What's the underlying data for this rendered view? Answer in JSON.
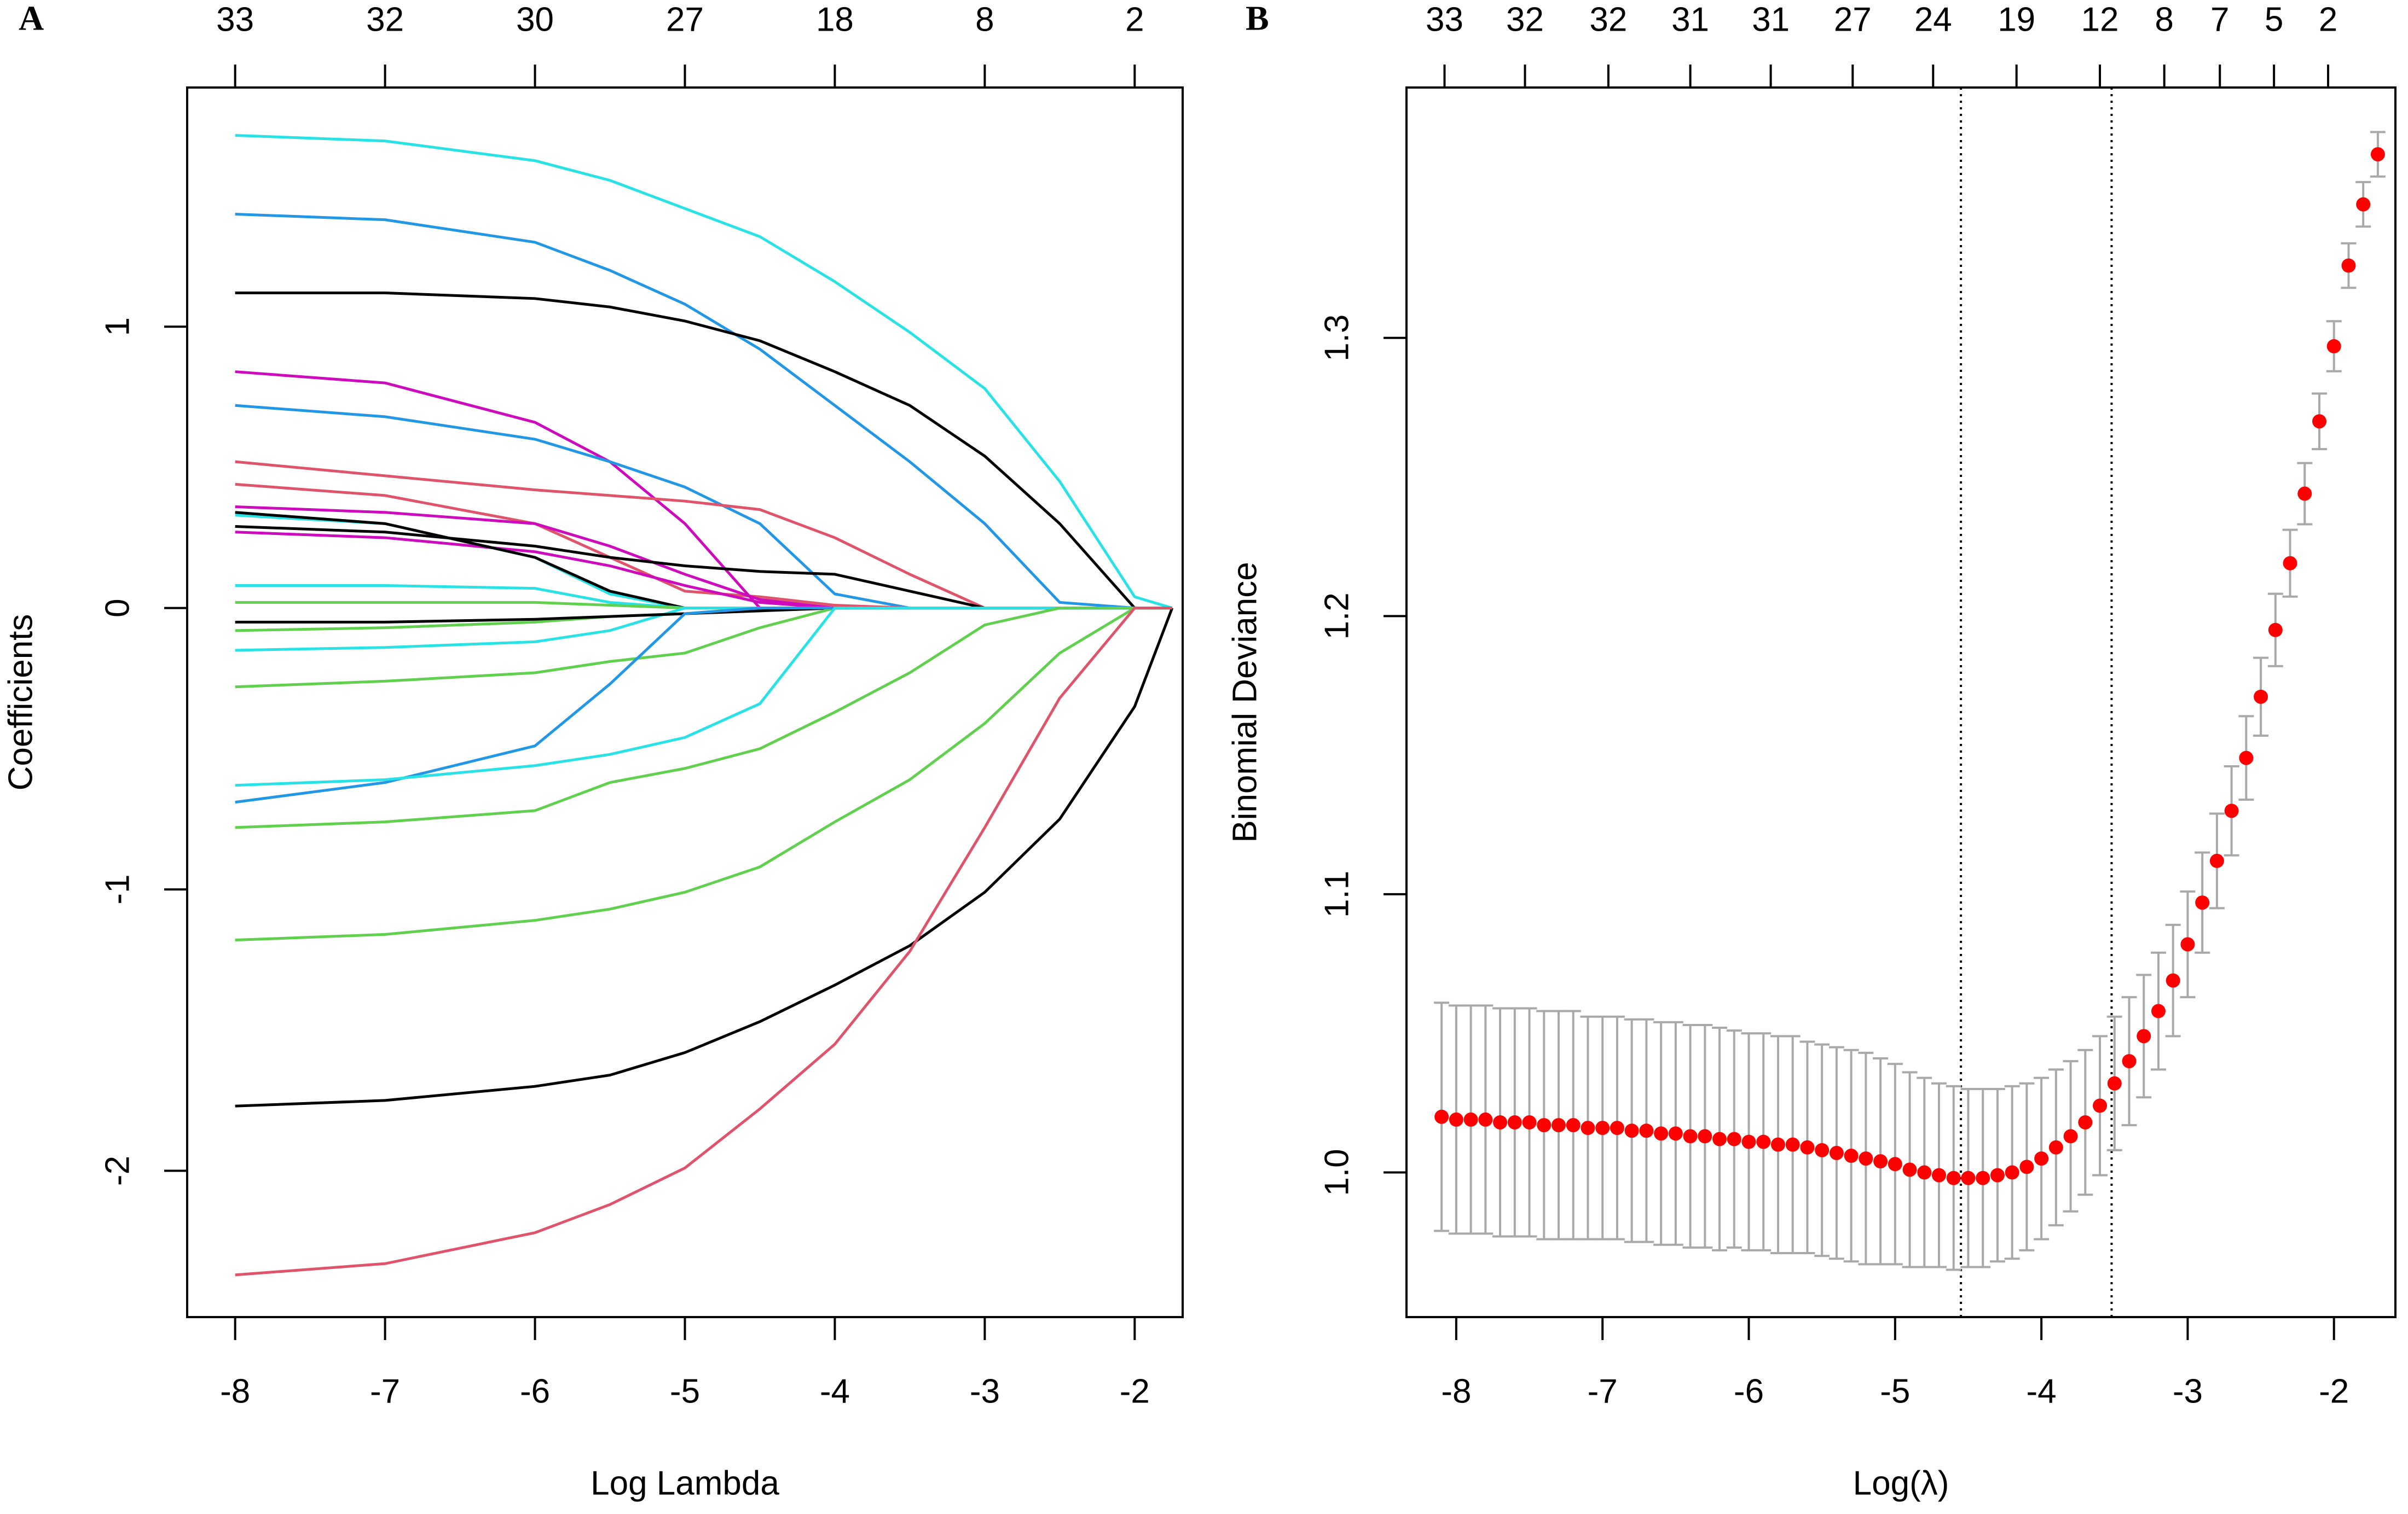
{
  "chart_data": [
    {
      "type": "line",
      "panel": "A",
      "xlabel": "Log Lambda",
      "ylabel": "Coefficients",
      "xlim": [
        -8.32,
        -1.68
      ],
      "ylim": [
        -2.52,
        1.85
      ],
      "xticks": [
        -8,
        -7,
        -6,
        -5,
        -4,
        -3,
        -2
      ],
      "yticks": [
        -2,
        -1,
        0,
        1
      ],
      "x2ticks": [
        {
          "value": -8,
          "label": "33"
        },
        {
          "value": -7,
          "label": "32"
        },
        {
          "value": -6,
          "label": "30"
        },
        {
          "value": -5,
          "label": "27"
        },
        {
          "value": -4,
          "label": "18"
        },
        {
          "value": -3,
          "label": "8"
        },
        {
          "value": -2,
          "label": "2"
        }
      ],
      "x": [
        -8,
        -7,
        -6,
        -5.5,
        -5,
        -4.5,
        -4,
        -3.5,
        -3,
        -2.5,
        -2,
        -1.75
      ],
      "series": [
        {
          "color": "#28E2E5",
          "values": [
            1.68,
            1.66,
            1.59,
            1.52,
            1.42,
            1.32,
            1.16,
            0.98,
            0.78,
            0.45,
            0.04,
            0
          ]
        },
        {
          "color": "#2297E6",
          "values": [
            1.4,
            1.38,
            1.3,
            1.2,
            1.08,
            0.92,
            0.72,
            0.52,
            0.3,
            0.02,
            0,
            0
          ]
        },
        {
          "color": "#000000",
          "values": [
            1.12,
            1.12,
            1.1,
            1.07,
            1.02,
            0.95,
            0.84,
            0.72,
            0.54,
            0.3,
            0,
            0
          ]
        },
        {
          "color": "#CD0BBC",
          "values": [
            0.84,
            0.8,
            0.66,
            0.52,
            0.3,
            0,
            0,
            0,
            0,
            0,
            0,
            0
          ]
        },
        {
          "color": "#2297E6",
          "values": [
            0.72,
            0.68,
            0.6,
            0.52,
            0.43,
            0.3,
            0.05,
            0,
            0,
            0,
            0,
            0
          ]
        },
        {
          "color": "#DF536B",
          "values": [
            0.52,
            0.47,
            0.42,
            0.4,
            0.38,
            0.35,
            0.25,
            0.12,
            0,
            0,
            0,
            0
          ]
        },
        {
          "color": "#DF536B",
          "values": [
            0.44,
            0.4,
            0.3,
            0.18,
            0.06,
            0.04,
            0.01,
            0,
            0,
            0,
            0,
            0
          ]
        },
        {
          "color": "#CD0BBC",
          "values": [
            0.36,
            0.34,
            0.3,
            0.22,
            0.12,
            0.03,
            0,
            0,
            0,
            0,
            0,
            0
          ]
        },
        {
          "color": "#000000",
          "values": [
            0.29,
            0.27,
            0.22,
            0.18,
            0.15,
            0.13,
            0.12,
            0.06,
            0,
            0,
            0,
            0
          ]
        },
        {
          "color": "#CD0BBC",
          "values": [
            0.27,
            0.25,
            0.2,
            0.15,
            0.08,
            0.02,
            0,
            0,
            0,
            0,
            0,
            0
          ]
        },
        {
          "color": "#28E2E5",
          "values": [
            0.33,
            0.3,
            0.18,
            0.05,
            0,
            0,
            0,
            0,
            0,
            0,
            0,
            0
          ]
        },
        {
          "color": "#000000",
          "values": [
            0.34,
            0.3,
            0.18,
            0.06,
            0,
            0,
            0,
            0,
            0,
            0,
            0,
            0
          ]
        },
        {
          "color": "#28E2E5",
          "values": [
            0.08,
            0.08,
            0.07,
            0.02,
            0,
            0,
            0,
            0,
            0,
            0,
            0,
            0
          ]
        },
        {
          "color": "#61D04F",
          "values": [
            0.02,
            0.02,
            0.02,
            0.01,
            0,
            0,
            0,
            0,
            0,
            0,
            0,
            0
          ]
        },
        {
          "color": "#61D04F",
          "values": [
            -0.08,
            -0.07,
            -0.05,
            -0.03,
            -0.02,
            0,
            0,
            0,
            0,
            0,
            0,
            0
          ]
        },
        {
          "color": "#28E2E5",
          "values": [
            -0.15,
            -0.14,
            -0.12,
            -0.08,
            0,
            0,
            0,
            0,
            0,
            0,
            0,
            0
          ]
        },
        {
          "color": "#000000",
          "values": [
            -0.05,
            -0.05,
            -0.04,
            -0.03,
            -0.02,
            -0.01,
            0,
            0,
            0,
            0,
            0,
            0
          ]
        },
        {
          "color": "#61D04F",
          "values": [
            -0.28,
            -0.26,
            -0.23,
            -0.19,
            -0.16,
            -0.07,
            0,
            0,
            0,
            0,
            0,
            0
          ]
        },
        {
          "color": "#2297E6",
          "values": [
            -0.69,
            -0.62,
            -0.49,
            -0.27,
            -0.02,
            0,
            0,
            0,
            0,
            0,
            0,
            0
          ]
        },
        {
          "color": "#28E2E5",
          "values": [
            -0.63,
            -0.61,
            -0.56,
            -0.52,
            -0.46,
            -0.34,
            0,
            0,
            0,
            0,
            0,
            0
          ]
        },
        {
          "color": "#61D04F",
          "values": [
            -0.78,
            -0.76,
            -0.72,
            -0.62,
            -0.57,
            -0.5,
            -0.37,
            -0.23,
            -0.06,
            0,
            0,
            0
          ]
        },
        {
          "color": "#61D04F",
          "values": [
            -1.18,
            -1.16,
            -1.11,
            -1.07,
            -1.01,
            -0.92,
            -0.76,
            -0.61,
            -0.41,
            -0.16,
            0,
            0
          ]
        },
        {
          "color": "#000000",
          "values": [
            -1.77,
            -1.75,
            -1.7,
            -1.66,
            -1.58,
            -1.47,
            -1.34,
            -1.2,
            -1.01,
            -0.75,
            -0.35,
            0
          ]
        },
        {
          "color": "#DF536B",
          "values": [
            -2.37,
            -2.33,
            -2.22,
            -2.12,
            -1.99,
            -1.78,
            -1.55,
            -1.22,
            -0.78,
            -0.32,
            0,
            0
          ]
        }
      ]
    },
    {
      "type": "errorbar",
      "panel": "B",
      "xlabel": "Log(λ)",
      "ylabel": "Binomial Deviance",
      "xlim": [
        -8.34,
        -1.58
      ],
      "ylim": [
        0.948,
        1.39
      ],
      "xticks": [
        -8,
        -7,
        -6,
        -5,
        -4,
        -3,
        -2
      ],
      "yticks": [
        {
          "value": 1.0,
          "label": "1.0"
        },
        1.1,
        1.2,
        1.3
      ],
      "x2ticks": [
        {
          "value": -8.08,
          "label": "33"
        },
        {
          "value": -7.53,
          "label": "32"
        },
        {
          "value": -6.96,
          "label": "32"
        },
        {
          "value": -6.4,
          "label": "31"
        },
        {
          "value": -5.85,
          "label": "31"
        },
        {
          "value": -5.29,
          "label": "27"
        },
        {
          "value": -4.74,
          "label": "24"
        },
        {
          "value": -4.17,
          "label": "19"
        },
        {
          "value": -3.6,
          "label": "12"
        },
        {
          "value": -3.16,
          "label": "8"
        },
        {
          "value": -2.78,
          "label": "7"
        },
        {
          "value": -2.41,
          "label": "5"
        },
        {
          "value": -2.04,
          "label": "2"
        }
      ],
      "vlines": [
        -4.55,
        -3.52
      ],
      "color": "#FF0000",
      "error_color": "#A9A9A9",
      "x": [
        -8.1,
        -8.0,
        -7.9,
        -7.8,
        -7.7,
        -7.6,
        -7.5,
        -7.4,
        -7.3,
        -7.2,
        -7.1,
        -7.0,
        -6.9,
        -6.8,
        -6.7,
        -6.6,
        -6.5,
        -6.4,
        -6.3,
        -6.2,
        -6.1,
        -6.0,
        -5.9,
        -5.8,
        -5.7,
        -5.6,
        -5.5,
        -5.4,
        -5.3,
        -5.2,
        -5.1,
        -5.0,
        -4.9,
        -4.8,
        -4.7,
        -4.6,
        -4.5,
        -4.4,
        -4.3,
        -4.2,
        -4.1,
        -4.0,
        -3.9,
        -3.8,
        -3.7,
        -3.6,
        -3.5,
        -3.4,
        -3.3,
        -3.2,
        -3.1,
        -3.0,
        -2.9,
        -2.8,
        -2.7,
        -2.6,
        -2.5,
        -2.4,
        -2.3,
        -2.2,
        -2.1,
        -2.0,
        -1.9,
        -1.8,
        -1.7
      ],
      "values": [
        1.02,
        1.019,
        1.019,
        1.019,
        1.018,
        1.018,
        1.018,
        1.017,
        1.017,
        1.017,
        1.016,
        1.016,
        1.016,
        1.015,
        1.015,
        1.014,
        1.014,
        1.013,
        1.013,
        1.012,
        1.012,
        1.011,
        1.011,
        1.01,
        1.01,
        1.009,
        1.008,
        1.007,
        1.006,
        1.005,
        1.004,
        1.003,
        1.001,
        1.0,
        0.999,
        0.998,
        0.998,
        0.998,
        0.999,
        1.0,
        1.002,
        1.005,
        1.009,
        1.013,
        1.018,
        1.024,
        1.032,
        1.04,
        1.049,
        1.058,
        1.069,
        1.082,
        1.097,
        1.112,
        1.13,
        1.149,
        1.171,
        1.195,
        1.219,
        1.244,
        1.27,
        1.297,
        1.326,
        1.348,
        1.366
      ],
      "errors": [
        0.041,
        0.041,
        0.041,
        0.041,
        0.041,
        0.041,
        0.041,
        0.041,
        0.041,
        0.041,
        0.04,
        0.04,
        0.04,
        0.04,
        0.04,
        0.04,
        0.04,
        0.04,
        0.04,
        0.04,
        0.039,
        0.039,
        0.039,
        0.039,
        0.039,
        0.038,
        0.038,
        0.038,
        0.038,
        0.038,
        0.037,
        0.036,
        0.035,
        0.034,
        0.033,
        0.033,
        0.032,
        0.032,
        0.031,
        0.031,
        0.03,
        0.029,
        0.028,
        0.027,
        0.026,
        0.025,
        0.024,
        0.023,
        0.022,
        0.021,
        0.02,
        0.019,
        0.018,
        0.017,
        0.016,
        0.015,
        0.014,
        0.013,
        0.012,
        0.011,
        0.01,
        0.009,
        0.008,
        0.008,
        0.008
      ]
    }
  ]
}
